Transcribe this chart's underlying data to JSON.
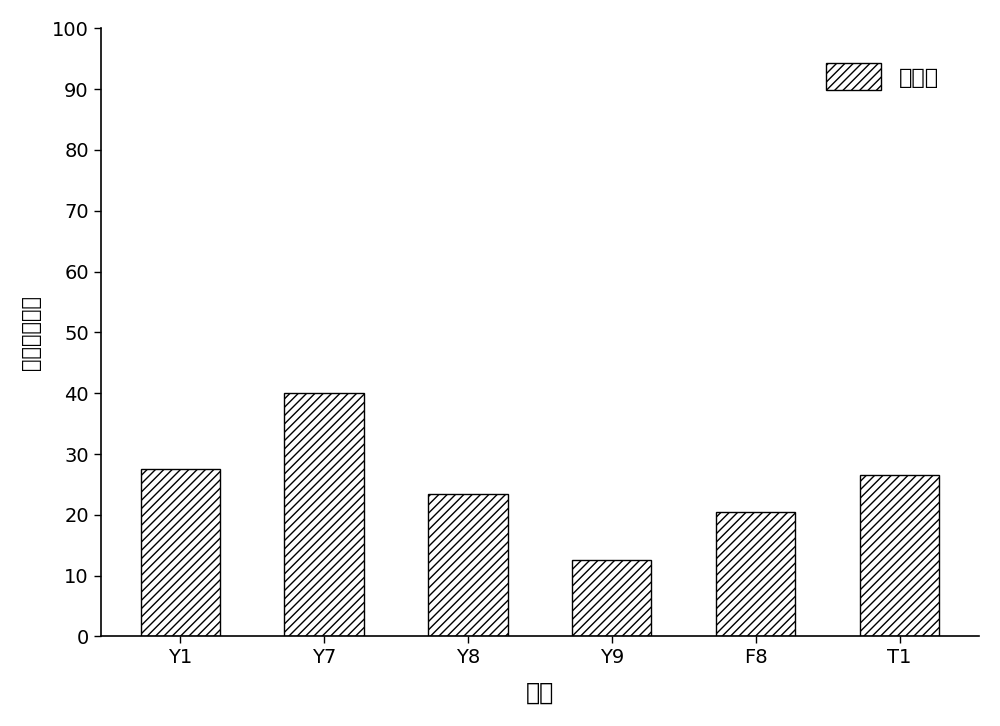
{
  "categories": [
    "Y1",
    "Y7",
    "Y8",
    "Y9",
    "F8",
    "T1"
  ],
  "values": [
    27.5,
    40.0,
    23.5,
    12.5,
    20.5,
    26.5
  ],
  "bar_color": "white",
  "bar_edgecolor": "black",
  "hatch": "////",
  "xlabel": "菌株",
  "ylabel": "去除率（％）",
  "ylim": [
    0,
    100
  ],
  "yticks": [
    0,
    10,
    20,
    30,
    40,
    50,
    60,
    70,
    80,
    90,
    100
  ],
  "legend_label": "去除率",
  "background_color": "#ffffff",
  "xlabel_fontsize": 17,
  "ylabel_fontsize": 15,
  "tick_fontsize": 14,
  "legend_fontsize": 16,
  "bar_width": 0.55
}
